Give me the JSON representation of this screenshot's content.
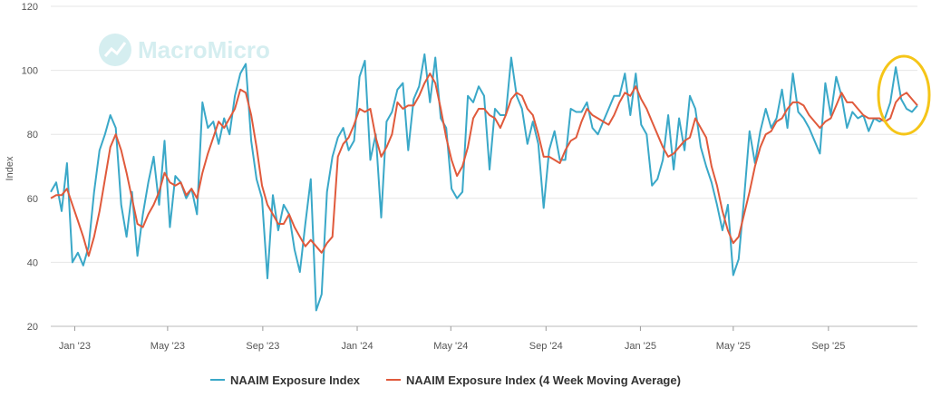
{
  "chart_data": {
    "type": "line",
    "title": "",
    "watermark": "MacroMicro",
    "xlabel": "",
    "ylabel": "Index",
    "ylim": [
      20,
      120
    ],
    "yticks": [
      20,
      40,
      60,
      80,
      100,
      120
    ],
    "grid": true,
    "legend_position": "bottom",
    "x_start": "2022-12-01",
    "x_step_days": 7,
    "xticks": [
      {
        "label": "Jan '23",
        "date": "2023-01-01"
      },
      {
        "label": "May '23",
        "date": "2023-05-01"
      },
      {
        "label": "Sep '23",
        "date": "2023-09-01"
      },
      {
        "label": "Jan '24",
        "date": "2024-01-01"
      },
      {
        "label": "May '24",
        "date": "2024-05-01"
      },
      {
        "label": "Sep '24",
        "date": "2024-09-01"
      },
      {
        "label": "Jan '25",
        "date": "2025-01-01"
      },
      {
        "label": "May '25",
        "date": "2025-05-01"
      },
      {
        "label": "Sep '25",
        "date": "2025-09-01"
      }
    ],
    "annotation": {
      "type": "circle",
      "color": "#f5c518",
      "note": "highlights latest weeks"
    },
    "series": [
      {
        "name": "NAAIM Exposure Index",
        "color": "#3aa8c8",
        "values": [
          62,
          65,
          56,
          71,
          40,
          43,
          39,
          45,
          62,
          75,
          80,
          86,
          82,
          58,
          48,
          62,
          42,
          55,
          65,
          73,
          58,
          78,
          51,
          67,
          65,
          60,
          63,
          55,
          90,
          82,
          84,
          77,
          85,
          80,
          92,
          99,
          102,
          78,
          66,
          60,
          35,
          61,
          50,
          58,
          55,
          44,
          37,
          52,
          66,
          25,
          30,
          62,
          73,
          79,
          82,
          75,
          78,
          98,
          103,
          72,
          80,
          54,
          84,
          87,
          94,
          96,
          75,
          91,
          95,
          105,
          90,
          104,
          85,
          82,
          63,
          60,
          62,
          92,
          90,
          95,
          92,
          69,
          88,
          86,
          86,
          104,
          92,
          88,
          77,
          84,
          77,
          57,
          75,
          81,
          72,
          72,
          88,
          87,
          87,
          90,
          82,
          80,
          84,
          88,
          92,
          92,
          99,
          86,
          99,
          83,
          80,
          64,
          66,
          72,
          86,
          69,
          85,
          75,
          92,
          88,
          76,
          70,
          65,
          58,
          50,
          58,
          36,
          41,
          60,
          81,
          71,
          81,
          88,
          82,
          85,
          94,
          82,
          99,
          87,
          85,
          82,
          78,
          74,
          96,
          86,
          98,
          92,
          82,
          87,
          85,
          86,
          81,
          85,
          84,
          85,
          90,
          101,
          91,
          88,
          87,
          89
        ]
      },
      {
        "name": "NAAIM Exposure Index (4 Week Moving Average)",
        "color": "#e05a3c",
        "values": [
          60,
          61,
          61,
          63,
          58,
          53,
          48,
          42,
          48,
          56,
          66,
          76,
          80,
          75,
          68,
          60,
          52,
          51,
          55,
          58,
          62,
          68,
          65,
          64,
          65,
          61,
          63,
          60,
          68,
          74,
          79,
          84,
          82,
          85,
          88,
          94,
          93,
          86,
          76,
          64,
          58,
          55,
          52,
          52,
          55,
          51,
          48,
          45,
          47,
          45,
          43,
          46,
          48,
          73,
          77,
          79,
          83,
          88,
          87,
          88,
          79,
          73,
          76,
          80,
          90,
          88,
          89,
          89,
          92,
          96,
          99,
          96,
          88,
          79,
          72,
          67,
          70,
          76,
          85,
          88,
          88,
          86,
          85,
          82,
          86,
          91,
          93,
          92,
          88,
          86,
          80,
          73,
          73,
          72,
          71,
          75,
          78,
          79,
          84,
          88,
          86,
          85,
          84,
          83,
          86,
          90,
          93,
          92,
          95,
          91,
          88,
          84,
          80,
          76,
          73,
          74,
          76,
          78,
          79,
          85,
          82,
          79,
          70,
          64,
          56,
          50,
          46,
          48,
          55,
          62,
          70,
          76,
          80,
          81,
          84,
          85,
          88,
          90,
          90,
          89,
          86,
          84,
          82,
          84,
          85,
          89,
          93,
          90,
          90,
          88,
          86,
          85,
          85,
          85,
          84,
          85,
          90,
          92,
          93,
          91,
          89
        ]
      }
    ]
  }
}
